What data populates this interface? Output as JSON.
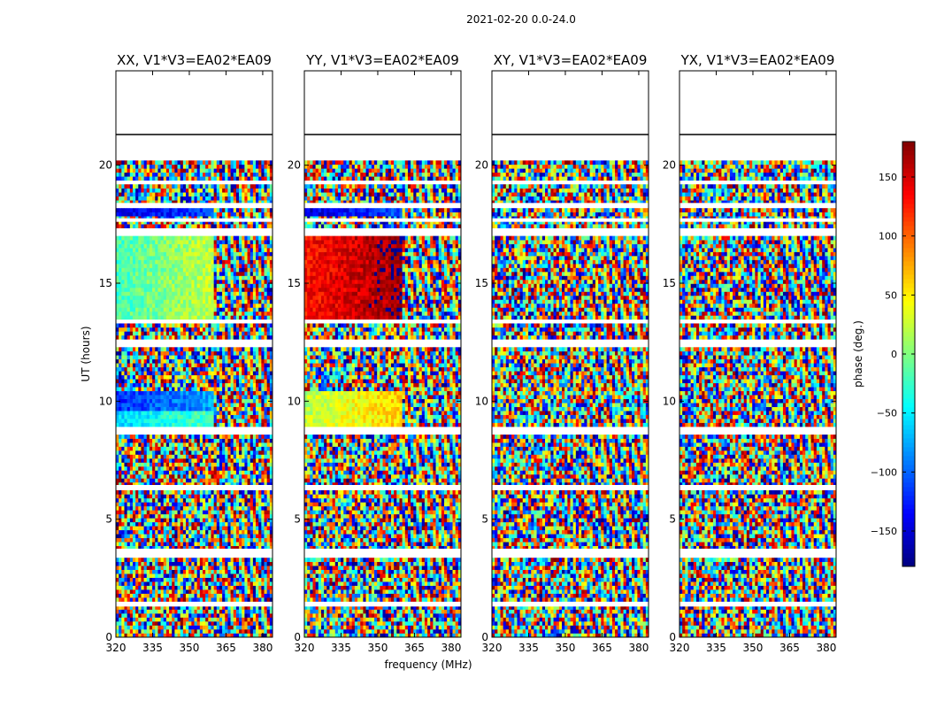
{
  "chart_data": {
    "type": "heatmap",
    "suptitle": "2021-02-20 0.0-24.0",
    "xlabel": "frequency (MHz)",
    "ylabel": "UT (hours)",
    "x_ticks": [
      "320",
      "335",
      "350",
      "365",
      "380"
    ],
    "y_ticks": [
      "0",
      "5",
      "10",
      "15",
      "20"
    ],
    "xlim": [
      320,
      384
    ],
    "ylim": [
      0,
      24
    ],
    "colorbar": {
      "label": "phase (deg.)",
      "range": [
        -180,
        180
      ],
      "ticks": [
        "150",
        "100",
        "50",
        "0",
        "−50",
        "−100",
        "−150"
      ],
      "colormap": "jet"
    },
    "panels": [
      {
        "title": "XX, V1*V3=EA02*EA09",
        "data_end_hours": 20.2,
        "coherent_bands": [
          {
            "t0": 9.6,
            "t1": 10.5,
            "phase": -120
          },
          {
            "t0": 8.9,
            "t1": 9.6,
            "phase": -60
          },
          {
            "t0": 13.5,
            "t1": 17.0,
            "phase": -20
          },
          {
            "t0": 17.9,
            "t1": 18.2,
            "phase": -150
          }
        ]
      },
      {
        "title": "YY, V1*V3=EA02*EA09",
        "data_end_hours": 20.2,
        "coherent_bands": [
          {
            "t0": 8.9,
            "t1": 10.5,
            "phase": 20
          },
          {
            "t0": 13.5,
            "t1": 17.0,
            "phase": 130
          },
          {
            "t0": 17.9,
            "t1": 18.2,
            "phase": -150
          }
        ]
      },
      {
        "title": "XY, V1*V3=EA02*EA09",
        "data_end_hours": 20.2,
        "coherent_bands": []
      },
      {
        "title": "YX, V1*V3=EA02*EA09",
        "data_end_hours": 20.2,
        "coherent_bands": []
      }
    ]
  }
}
